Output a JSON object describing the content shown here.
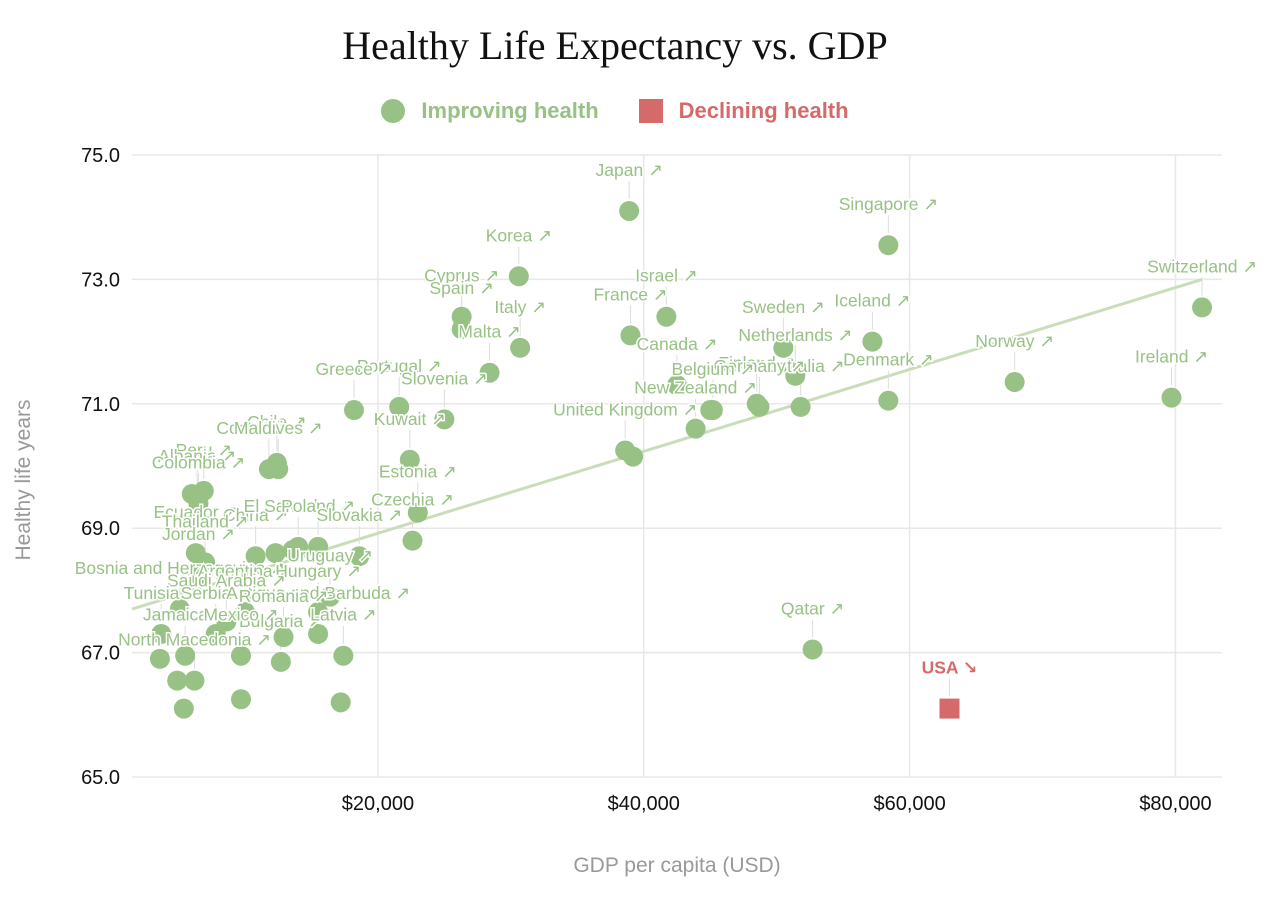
{
  "chart_data": {
    "type": "scatter",
    "title": "Healthy Life Expectancy vs. GDP",
    "xlabel": "GDP per capita (USD)",
    "ylabel": "Healthy life years",
    "xlim": [
      1500,
      83500
    ],
    "ylim": [
      65,
      75
    ],
    "x_ticks": [
      20000,
      40000,
      60000,
      80000
    ],
    "x_tick_labels": [
      "$20,000",
      "$40,000",
      "$60,000",
      "$80,000"
    ],
    "y_ticks": [
      65,
      67,
      69,
      71,
      73,
      75
    ],
    "y_tick_labels": [
      "65.0",
      "67.0",
      "69.0",
      "71.0",
      "73.0",
      "75.0"
    ],
    "grid": true,
    "legend": [
      {
        "name": "Improving health",
        "marker": "circle",
        "color": "#98c285"
      },
      {
        "name": "Declining health",
        "marker": "square",
        "color": "#d46a6a"
      }
    ],
    "trend_line": {
      "x": [
        1500,
        82000
      ],
      "y": [
        67.7,
        73.0
      ],
      "color": "#c9ddb9"
    },
    "series": [
      {
        "name": "Improving health",
        "color": "#98c285",
        "points": [
          {
            "label": "Japan ↗",
            "x": 38900,
            "y": 74.1
          },
          {
            "label": "Singapore ↗",
            "x": 58400,
            "y": 73.55
          },
          {
            "label": "Switzerland ↗",
            "x": 82000,
            "y": 72.55
          },
          {
            "label": "Korea ↗",
            "x": 30600,
            "y": 73.05
          },
          {
            "label": "Cyprus ↗",
            "x": 26300,
            "y": 72.4
          },
          {
            "label": "Spain ↗",
            "x": 26300,
            "y": 72.2
          },
          {
            "label": "Italy ↗",
            "x": 30700,
            "y": 71.9
          },
          {
            "label": "Israel ↗",
            "x": 41700,
            "y": 72.4
          },
          {
            "label": "France ↗",
            "x": 39000,
            "y": 72.1
          },
          {
            "label": "Sweden ↗",
            "x": 50500,
            "y": 71.9
          },
          {
            "label": "Iceland ↗",
            "x": 57200,
            "y": 72.0
          },
          {
            "label": "Netherlands ↗",
            "x": 51400,
            "y": 71.45
          },
          {
            "label": "Norway ↗",
            "x": 67900,
            "y": 71.35
          },
          {
            "label": "Ireland ↗",
            "x": 79700,
            "y": 71.1
          },
          {
            "label": "Malta ↗",
            "x": 28400,
            "y": 71.5
          },
          {
            "label": "Canada ↗",
            "x": 42500,
            "y": 71.3
          },
          {
            "label": "Denmark ↗",
            "x": 58400,
            "y": 71.05
          },
          {
            "label": "Finland ↗",
            "x": 48500,
            "y": 71.0
          },
          {
            "label": "Australia ↗",
            "x": 51800,
            "y": 70.95
          },
          {
            "label": "Germany ↗",
            "x": 48700,
            "y": 70.95
          },
          {
            "label": "Belgium ↗",
            "x": 45200,
            "y": 70.9
          },
          {
            "label": "Portugal ↗",
            "x": 21600,
            "y": 70.95
          },
          {
            "label": "Greece ↗",
            "x": 18200,
            "y": 70.9
          },
          {
            "label": "Slovenia ↗",
            "x": 25000,
            "y": 70.75
          },
          {
            "label": "New Zealand ↗",
            "x": 43900,
            "y": 70.6
          },
          {
            "label": "United Kingdom ↗",
            "x": 38600,
            "y": 70.25
          },
          {
            "label": "Kuwait ↗",
            "x": 22400,
            "y": 70.1
          },
          {
            "label": "Chile ↗",
            "x": 12400,
            "y": 70.05
          },
          {
            "label": "Costa Rica ↗",
            "x": 11800,
            "y": 69.95
          },
          {
            "label": "Maldives ↗",
            "x": 12500,
            "y": 69.95
          },
          {
            "label": "Peru ↗",
            "x": 6900,
            "y": 69.6
          },
          {
            "label": "Albania ↗",
            "x": 6400,
            "y": 69.5
          },
          {
            "label": "Colombia ↗",
            "x": 6500,
            "y": 69.4
          },
          {
            "label": "Estonia ↗",
            "x": 23000,
            "y": 69.25
          },
          {
            "label": "Czechia ↗",
            "x": 22600,
            "y": 68.8
          },
          {
            "label": "Ecuador ↗",
            "x": 6300,
            "y": 68.6
          },
          {
            "label": "China ↗",
            "x": 10800,
            "y": 68.55
          },
          {
            "label": "Thailand ↗",
            "x": 7000,
            "y": 68.45
          },
          {
            "label": "El Salvador ↗",
            "x": 14000,
            "y": 68.7
          },
          {
            "label": "Poland ↗",
            "x": 15500,
            "y": 68.7
          },
          {
            "label": "Slovakia ↗",
            "x": 18600,
            "y": 68.55
          },
          {
            "label": "Jordan ↗",
            "x": 6500,
            "y": 68.25
          },
          {
            "label": "Uruguay ↗",
            "x": 16400,
            "y": 67.9
          },
          {
            "label": "Bosnia and Herzegovina ↗",
            "x": 5100,
            "y": 67.7
          },
          {
            "label": "Argentina ↗",
            "x": 10000,
            "y": 67.65
          },
          {
            "label": "Hungary ↗",
            "x": 15500,
            "y": 67.65
          },
          {
            "label": "Saudi Arabia ↗",
            "x": 8600,
            "y": 67.5
          },
          {
            "label": "Tunisia ↗",
            "x": 3700,
            "y": 67.3
          },
          {
            "label": "Serbia ↗",
            "x": 7800,
            "y": 67.3
          },
          {
            "label": "Antigua and Barbuda ↗",
            "x": 15500,
            "y": 67.3
          },
          {
            "label": "Romania ↗",
            "x": 12900,
            "y": 67.25
          },
          {
            "label": "Jamaica ↗",
            "x": 5500,
            "y": 66.95
          },
          {
            "label": "Bulgaria ↗",
            "x": 12700,
            "y": 66.85
          },
          {
            "label": "Mexico ↗",
            "x": 9700,
            "y": 66.95
          },
          {
            "label": "North Macedonia ↗",
            "x": 6200,
            "y": 66.55
          },
          {
            "label": "Latvia ↗",
            "x": 17400,
            "y": 66.95
          },
          {
            "label": "Qatar ↗",
            "x": 52700,
            "y": 67.05
          }
        ]
      },
      {
        "name": "Declining health",
        "color": "#d46a6a",
        "points": [
          {
            "label": "USA ↘",
            "x": 63000,
            "y": 66.1
          }
        ]
      }
    ],
    "unlabeled_points": [
      {
        "x": 3600,
        "y": 66.9
      },
      {
        "x": 4900,
        "y": 66.55
      },
      {
        "x": 5400,
        "y": 66.1
      },
      {
        "x": 9700,
        "y": 66.25
      },
      {
        "x": 17200,
        "y": 66.2
      },
      {
        "x": 6000,
        "y": 69.55
      },
      {
        "x": 12300,
        "y": 68.6
      },
      {
        "x": 13600,
        "y": 68.65
      },
      {
        "x": 39200,
        "y": 70.15
      },
      {
        "x": 45000,
        "y": 70.9
      }
    ]
  }
}
